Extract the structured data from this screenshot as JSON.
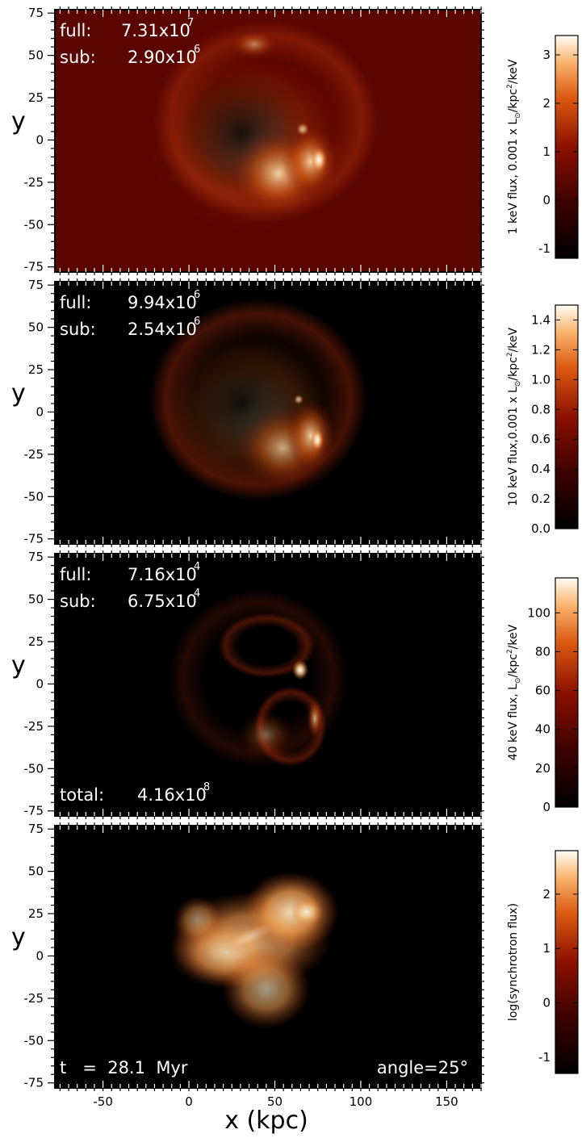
{
  "figure": {
    "xlabel": "x (kpc)",
    "ylabel": "y",
    "x_ticks": [
      "-50",
      "0",
      "50",
      "100",
      "150"
    ],
    "y_ticks": [
      "75",
      "50",
      "25",
      "0",
      "-25",
      "-50",
      "-75"
    ],
    "panels": [
      {
        "full_label": "full:",
        "full_value": "7.31x10",
        "full_exp": "7",
        "sub_label": "sub:",
        "sub_value": "2.90x10",
        "sub_exp": "6",
        "colorbar": {
          "title": "1 keV flux, 0.001 x L",
          "title_unit": "/kpc",
          "title_unit_sup": "2",
          "title_tail": "/keV",
          "sun_symbol": "⊙",
          "ticks": [
            "3",
            "2",
            "1",
            "0",
            "-1"
          ]
        }
      },
      {
        "full_label": "full:",
        "full_value": "9.94x10",
        "full_exp": "6",
        "sub_label": "sub:",
        "sub_value": "2.54x10",
        "sub_exp": "6",
        "colorbar": {
          "title": "10 keV flux,0.001 x L",
          "title_unit": "/kpc",
          "title_unit_sup": "2",
          "title_tail": "/keV",
          "sun_symbol": "⊙",
          "ticks": [
            "1.4",
            "1.2",
            "1.0",
            "0.8",
            "0.6",
            "0.4",
            "0.2",
            "0.0"
          ]
        }
      },
      {
        "full_label": "full:",
        "full_value": "7.16x10",
        "full_exp": "4",
        "sub_label": "sub:",
        "sub_value": "6.75x10",
        "sub_exp": "4",
        "total_label": "total:",
        "total_value": "4.16x10",
        "total_exp": "8",
        "colorbar": {
          "title": "40 keV flux, L",
          "title_unit": "/kpc",
          "title_unit_sup": "2",
          "title_tail": "/keV",
          "sun_symbol": "⊙",
          "ticks": [
            "100",
            "80",
            "60",
            "40",
            "20",
            "0"
          ]
        }
      },
      {
        "time_label": "t   =  28.1  Myr",
        "angle_label": "angle=25°",
        "colorbar": {
          "title": "log(synchrotron flux)",
          "ticks": [
            "2",
            "1",
            "0",
            "-1"
          ]
        }
      }
    ],
    "colors": {
      "background_panel1": "#5a0500",
      "background_dark": "#000000",
      "accent_hot": "#fff4d0",
      "mid_red": "#8c1000"
    }
  },
  "chart_data": [
    {
      "type": "heatmap",
      "title": "",
      "xlabel": "x (kpc)",
      "ylabel": "y",
      "xlim": [
        -78,
        170
      ],
      "ylim": [
        -78,
        77
      ],
      "colorbar_label": "1 keV flux, 0.001 x L⊙/kpc2/keV",
      "colorbar_range": [
        -1.2,
        3.4
      ],
      "annotations": {
        "full": "7.31x10^7",
        "sub": "2.90x10^6"
      }
    },
    {
      "type": "heatmap",
      "title": "",
      "xlabel": "x (kpc)",
      "ylabel": "y",
      "xlim": [
        -78,
        170
      ],
      "ylim": [
        -78,
        77
      ],
      "colorbar_label": "10 keV flux,0.001 x L⊙/kpc2/keV",
      "colorbar_range": [
        0.0,
        1.5
      ],
      "annotations": {
        "full": "9.94x10^6",
        "sub": "2.54x10^6"
      }
    },
    {
      "type": "heatmap",
      "title": "",
      "xlabel": "x (kpc)",
      "ylabel": "y",
      "xlim": [
        -78,
        170
      ],
      "ylim": [
        -78,
        77
      ],
      "colorbar_label": "40 keV flux, L⊙/kpc2/keV",
      "colorbar_range": [
        0,
        118
      ],
      "annotations": {
        "full": "7.16x10^4",
        "sub": "6.75x10^4",
        "total": "4.16x10^8"
      }
    },
    {
      "type": "heatmap",
      "title": "",
      "xlabel": "x (kpc)",
      "ylabel": "y",
      "xlim": [
        -78,
        170
      ],
      "ylim": [
        -78,
        77
      ],
      "colorbar_label": "log(synchrotron flux)",
      "colorbar_range": [
        -1.3,
        2.8
      ],
      "annotations": {
        "time": "t = 28.1 Myr",
        "angle": "angle=25°"
      }
    }
  ]
}
